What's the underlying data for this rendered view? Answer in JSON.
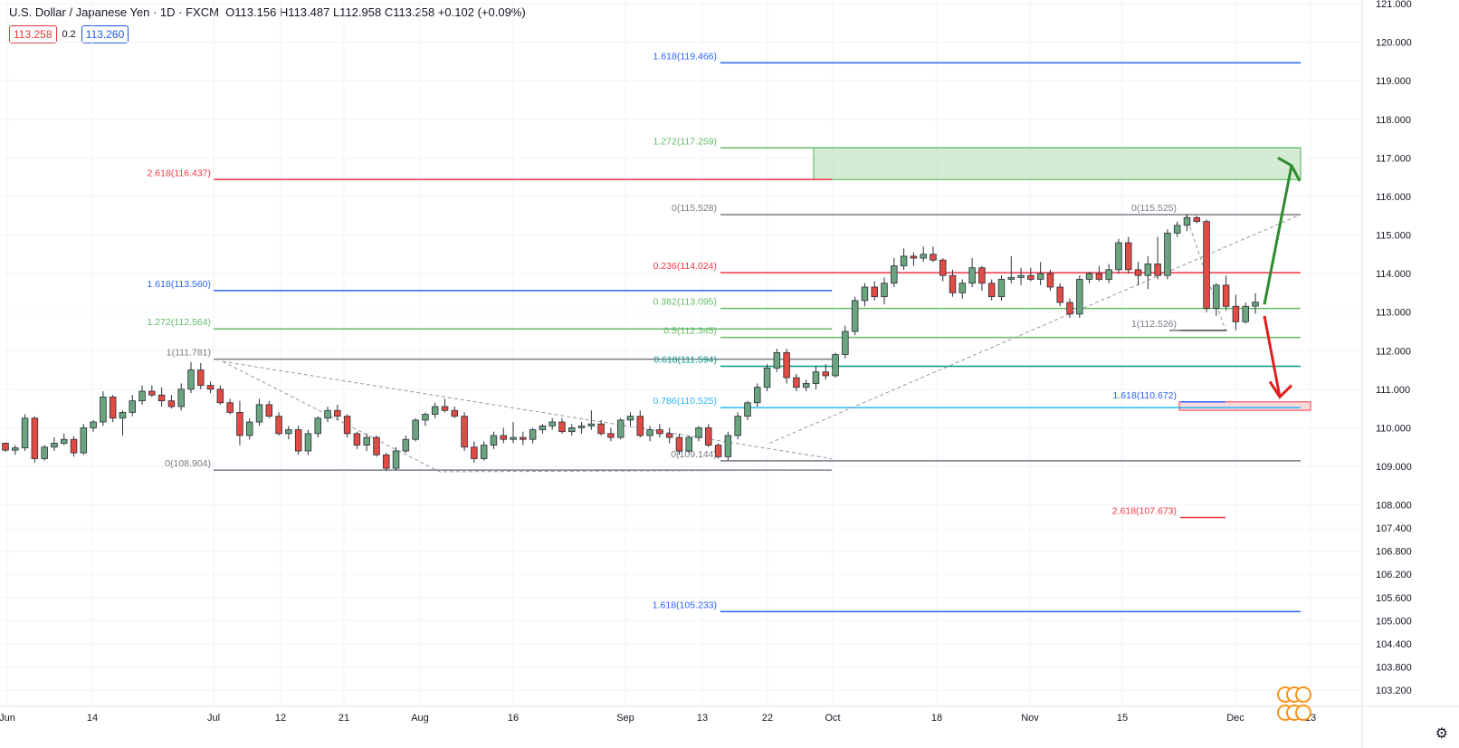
{
  "header": {
    "symbol": "U.S. Dollar / Japanese Yen · 1D · FXCM",
    "ohlc": "O113.156 H113.487 L112.958 C113.258 +0.102 (+0.09%)",
    "sell_price": "113.258",
    "spread": "0.2",
    "buy_price": "113.260"
  },
  "colors": {
    "up": "#26a69a",
    "down": "#ef5350",
    "fib_red": "#f23645",
    "fib_blue": "#2962ff",
    "fib_green": "#4caf50",
    "fib_gray": "#787b86",
    "zone_green": "#b7ddb8",
    "zone_red": "#f8c9cc"
  },
  "chart_data": {
    "type": "candlestick",
    "y_axis_ticks": [
      "121.000",
      "120.000",
      "119.000",
      "118.000",
      "117.000",
      "116.000",
      "115.000",
      "114.000",
      "113.000",
      "112.000",
      "111.000",
      "110.000",
      "109.000",
      "108.000",
      "107.400",
      "106.800",
      "106.200",
      "105.600",
      "105.000",
      "104.400",
      "103.800",
      "103.200"
    ],
    "x_axis_ticks": [
      "Jun",
      "14",
      "Jul",
      "12",
      "21",
      "Aug",
      "16",
      "Sep",
      "13",
      "22",
      "Oct",
      "18",
      "Nov",
      "15",
      "Dec",
      "13"
    ],
    "fib_levels": [
      {
        "label": "1.618(119.466)",
        "price": 119.466,
        "color": "blue"
      },
      {
        "label": "1.272(117.259)",
        "price": 117.259,
        "color": "green"
      },
      {
        "label": "2.618(116.437)",
        "price": 116.437,
        "color": "red"
      },
      {
        "label": "0(115.528)",
        "price": 115.528,
        "color": "gray"
      },
      {
        "label": "0(115.525)",
        "price": 115.525,
        "color": "gray"
      },
      {
        "label": "0.236(114.024)",
        "price": 114.024,
        "color": "red"
      },
      {
        "label": "1.618(113.560)",
        "price": 113.56,
        "color": "blue"
      },
      {
        "label": "0.382(113.095)",
        "price": 113.095,
        "color": "green"
      },
      {
        "label": "1.272(112.564)",
        "price": 112.564,
        "color": "green"
      },
      {
        "label": "1(112.526)",
        "price": 112.526,
        "color": "gray"
      },
      {
        "label": "0.5(112.345)",
        "price": 112.345,
        "color": "green"
      },
      {
        "label": "1(111.781)",
        "price": 111.781,
        "color": "gray"
      },
      {
        "label": "0.618(111.594)",
        "price": 111.594,
        "color": "teal"
      },
      {
        "label": "1.618(110.672)",
        "price": 110.672,
        "color": "blue"
      },
      {
        "label": "0.786(110.525)",
        "price": 110.525,
        "color": "lightblue"
      },
      {
        "label": "0(109.144)",
        "price": 109.144,
        "color": "gray"
      },
      {
        "label": "0(108.904)",
        "price": 108.904,
        "color": "gray"
      },
      {
        "label": "2.618(107.673)",
        "price": 107.673,
        "color": "red"
      },
      {
        "label": "1.618(105.233)",
        "price": 105.233,
        "color": "blue"
      }
    ],
    "candles": [
      [
        109.6,
        109.62,
        109.38,
        109.42
      ],
      [
        109.42,
        109.55,
        109.3,
        109.48
      ],
      [
        109.48,
        110.35,
        109.4,
        110.25
      ],
      [
        110.25,
        110.3,
        109.1,
        109.2
      ],
      [
        109.2,
        109.55,
        109.15,
        109.5
      ],
      [
        109.5,
        109.75,
        109.4,
        109.6
      ],
      [
        109.6,
        109.85,
        109.55,
        109.7
      ],
      [
        109.7,
        109.78,
        109.25,
        109.35
      ],
      [
        109.35,
        110.1,
        109.3,
        110.0
      ],
      [
        110.0,
        110.2,
        109.9,
        110.15
      ],
      [
        110.15,
        110.95,
        110.05,
        110.8
      ],
      [
        110.8,
        110.85,
        110.15,
        110.25
      ],
      [
        110.25,
        110.45,
        109.8,
        110.4
      ],
      [
        110.4,
        110.85,
        110.3,
        110.7
      ],
      [
        110.7,
        111.1,
        110.6,
        110.95
      ],
      [
        110.95,
        111.1,
        110.8,
        110.85
      ],
      [
        110.85,
        111.05,
        110.55,
        110.7
      ],
      [
        110.7,
        110.85,
        110.5,
        110.55
      ],
      [
        110.55,
        111.15,
        110.45,
        111.0
      ],
      [
        111.0,
        111.7,
        110.9,
        111.5
      ],
      [
        111.5,
        111.68,
        111.0,
        111.1
      ],
      [
        111.1,
        111.2,
        110.9,
        111.0
      ],
      [
        111.0,
        111.1,
        110.6,
        110.65
      ],
      [
        110.65,
        110.75,
        110.35,
        110.4
      ],
      [
        110.4,
        110.7,
        109.55,
        109.8
      ],
      [
        109.8,
        110.25,
        109.7,
        110.15
      ],
      [
        110.15,
        110.75,
        110.05,
        110.6
      ],
      [
        110.6,
        110.7,
        110.25,
        110.3
      ],
      [
        110.3,
        110.4,
        109.8,
        109.85
      ],
      [
        109.85,
        110.05,
        109.7,
        109.95
      ],
      [
        109.95,
        110.05,
        109.3,
        109.4
      ],
      [
        109.4,
        109.95,
        109.3,
        109.85
      ],
      [
        109.85,
        110.3,
        109.75,
        110.25
      ],
      [
        110.25,
        110.55,
        110.15,
        110.45
      ],
      [
        110.45,
        110.6,
        110.2,
        110.3
      ],
      [
        110.3,
        110.35,
        109.75,
        109.85
      ],
      [
        109.85,
        109.9,
        109.45,
        109.55
      ],
      [
        109.55,
        109.85,
        109.4,
        109.75
      ],
      [
        109.75,
        109.8,
        109.25,
        109.3
      ],
      [
        109.3,
        109.35,
        108.88,
        108.95
      ],
      [
        108.95,
        109.5,
        108.9,
        109.4
      ],
      [
        109.4,
        109.8,
        109.35,
        109.7
      ],
      [
        109.7,
        110.25,
        109.65,
        110.2
      ],
      [
        110.2,
        110.4,
        110.05,
        110.35
      ],
      [
        110.35,
        110.65,
        110.25,
        110.55
      ],
      [
        110.55,
        110.75,
        110.4,
        110.45
      ],
      [
        110.45,
        110.55,
        110.25,
        110.3
      ],
      [
        110.3,
        110.4,
        109.4,
        109.5
      ],
      [
        109.5,
        109.65,
        109.1,
        109.2
      ],
      [
        109.2,
        109.65,
        109.15,
        109.55
      ],
      [
        109.55,
        109.9,
        109.45,
        109.8
      ],
      [
        109.8,
        110.0,
        109.6,
        109.7
      ],
      [
        109.7,
        110.15,
        109.6,
        109.75
      ],
      [
        109.75,
        109.9,
        109.55,
        109.7
      ],
      [
        109.7,
        110.0,
        109.6,
        109.95
      ],
      [
        109.95,
        110.1,
        109.85,
        110.05
      ],
      [
        110.05,
        110.25,
        109.95,
        110.15
      ],
      [
        110.15,
        110.25,
        109.85,
        109.9
      ],
      [
        109.9,
        110.1,
        109.8,
        110.0
      ],
      [
        110.0,
        110.15,
        109.85,
        110.05
      ],
      [
        110.05,
        110.45,
        109.95,
        110.1
      ],
      [
        110.1,
        110.2,
        109.8,
        109.85
      ],
      [
        109.85,
        110.0,
        109.65,
        109.75
      ],
      [
        109.75,
        110.25,
        109.7,
        110.2
      ],
      [
        110.2,
        110.4,
        110.05,
        110.3
      ],
      [
        110.3,
        110.45,
        109.75,
        109.8
      ],
      [
        109.8,
        110.05,
        109.65,
        109.95
      ],
      [
        109.95,
        110.1,
        109.75,
        109.85
      ],
      [
        109.85,
        110.0,
        109.6,
        109.75
      ],
      [
        109.75,
        109.85,
        109.3,
        109.4
      ],
      [
        109.4,
        109.8,
        109.35,
        109.75
      ],
      [
        109.75,
        110.05,
        109.65,
        110.0
      ],
      [
        110.0,
        110.1,
        109.5,
        109.55
      ],
      [
        109.55,
        109.6,
        109.2,
        109.25
      ],
      [
        109.25,
        109.9,
        109.15,
        109.8
      ],
      [
        109.8,
        110.4,
        109.7,
        110.3
      ],
      [
        110.3,
        110.7,
        110.2,
        110.65
      ],
      [
        110.65,
        111.15,
        110.55,
        111.05
      ],
      [
        111.05,
        111.65,
        110.95,
        111.55
      ],
      [
        111.55,
        112.05,
        111.45,
        111.95
      ],
      [
        111.95,
        112.05,
        111.15,
        111.3
      ],
      [
        111.3,
        111.4,
        110.95,
        111.05
      ],
      [
        111.05,
        111.25,
        110.95,
        111.15
      ],
      [
        111.15,
        111.6,
        111.0,
        111.45
      ],
      [
        111.45,
        111.65,
        111.25,
        111.35
      ],
      [
        111.35,
        111.95,
        111.3,
        111.9
      ],
      [
        111.9,
        112.65,
        111.8,
        112.5
      ],
      [
        112.5,
        113.4,
        112.4,
        113.3
      ],
      [
        113.3,
        113.75,
        113.15,
        113.65
      ],
      [
        113.65,
        113.8,
        113.3,
        113.4
      ],
      [
        113.4,
        113.9,
        113.2,
        113.75
      ],
      [
        113.75,
        114.4,
        113.65,
        114.2
      ],
      [
        114.2,
        114.65,
        114.1,
        114.45
      ],
      [
        114.45,
        114.55,
        114.2,
        114.4
      ],
      [
        114.4,
        114.7,
        114.3,
        114.5
      ],
      [
        114.5,
        114.7,
        114.3,
        114.35
      ],
      [
        114.35,
        114.4,
        113.8,
        113.95
      ],
      [
        113.95,
        114.1,
        113.4,
        113.5
      ],
      [
        113.5,
        113.85,
        113.35,
        113.75
      ],
      [
        113.75,
        114.4,
        113.65,
        114.15
      ],
      [
        114.15,
        114.2,
        113.55,
        113.75
      ],
      [
        113.75,
        113.85,
        113.3,
        113.4
      ],
      [
        113.4,
        113.95,
        113.3,
        113.85
      ],
      [
        113.85,
        114.45,
        113.75,
        113.9
      ],
      [
        113.9,
        114.15,
        113.7,
        113.95
      ],
      [
        113.95,
        114.15,
        113.8,
        113.85
      ],
      [
        113.85,
        114.3,
        113.7,
        114.0
      ],
      [
        114.0,
        114.1,
        113.55,
        113.65
      ],
      [
        113.65,
        113.75,
        113.15,
        113.25
      ],
      [
        113.25,
        113.35,
        112.85,
        112.95
      ],
      [
        112.95,
        113.95,
        112.85,
        113.85
      ],
      [
        113.85,
        114.05,
        113.75,
        114.0
      ],
      [
        114.0,
        114.2,
        113.8,
        113.85
      ],
      [
        113.85,
        114.25,
        113.75,
        114.1
      ],
      [
        114.1,
        114.9,
        114.0,
        114.8
      ],
      [
        114.8,
        114.95,
        114.0,
        114.1
      ],
      [
        114.1,
        114.3,
        113.7,
        113.95
      ],
      [
        113.95,
        114.45,
        113.6,
        114.25
      ],
      [
        114.25,
        114.95,
        113.85,
        113.95
      ],
      [
        113.95,
        115.15,
        113.85,
        115.05
      ],
      [
        115.05,
        115.35,
        114.95,
        115.25
      ],
      [
        115.25,
        115.53,
        115.1,
        115.45
      ],
      [
        115.45,
        115.5,
        115.3,
        115.35
      ],
      [
        115.35,
        115.4,
        113.0,
        113.1
      ],
      [
        113.1,
        113.75,
        112.9,
        113.7
      ],
      [
        113.7,
        113.95,
        113.05,
        113.15
      ],
      [
        113.15,
        113.45,
        112.53,
        112.75
      ],
      [
        112.75,
        113.25,
        112.7,
        113.15
      ],
      [
        113.156,
        113.487,
        112.958,
        113.258
      ]
    ]
  }
}
